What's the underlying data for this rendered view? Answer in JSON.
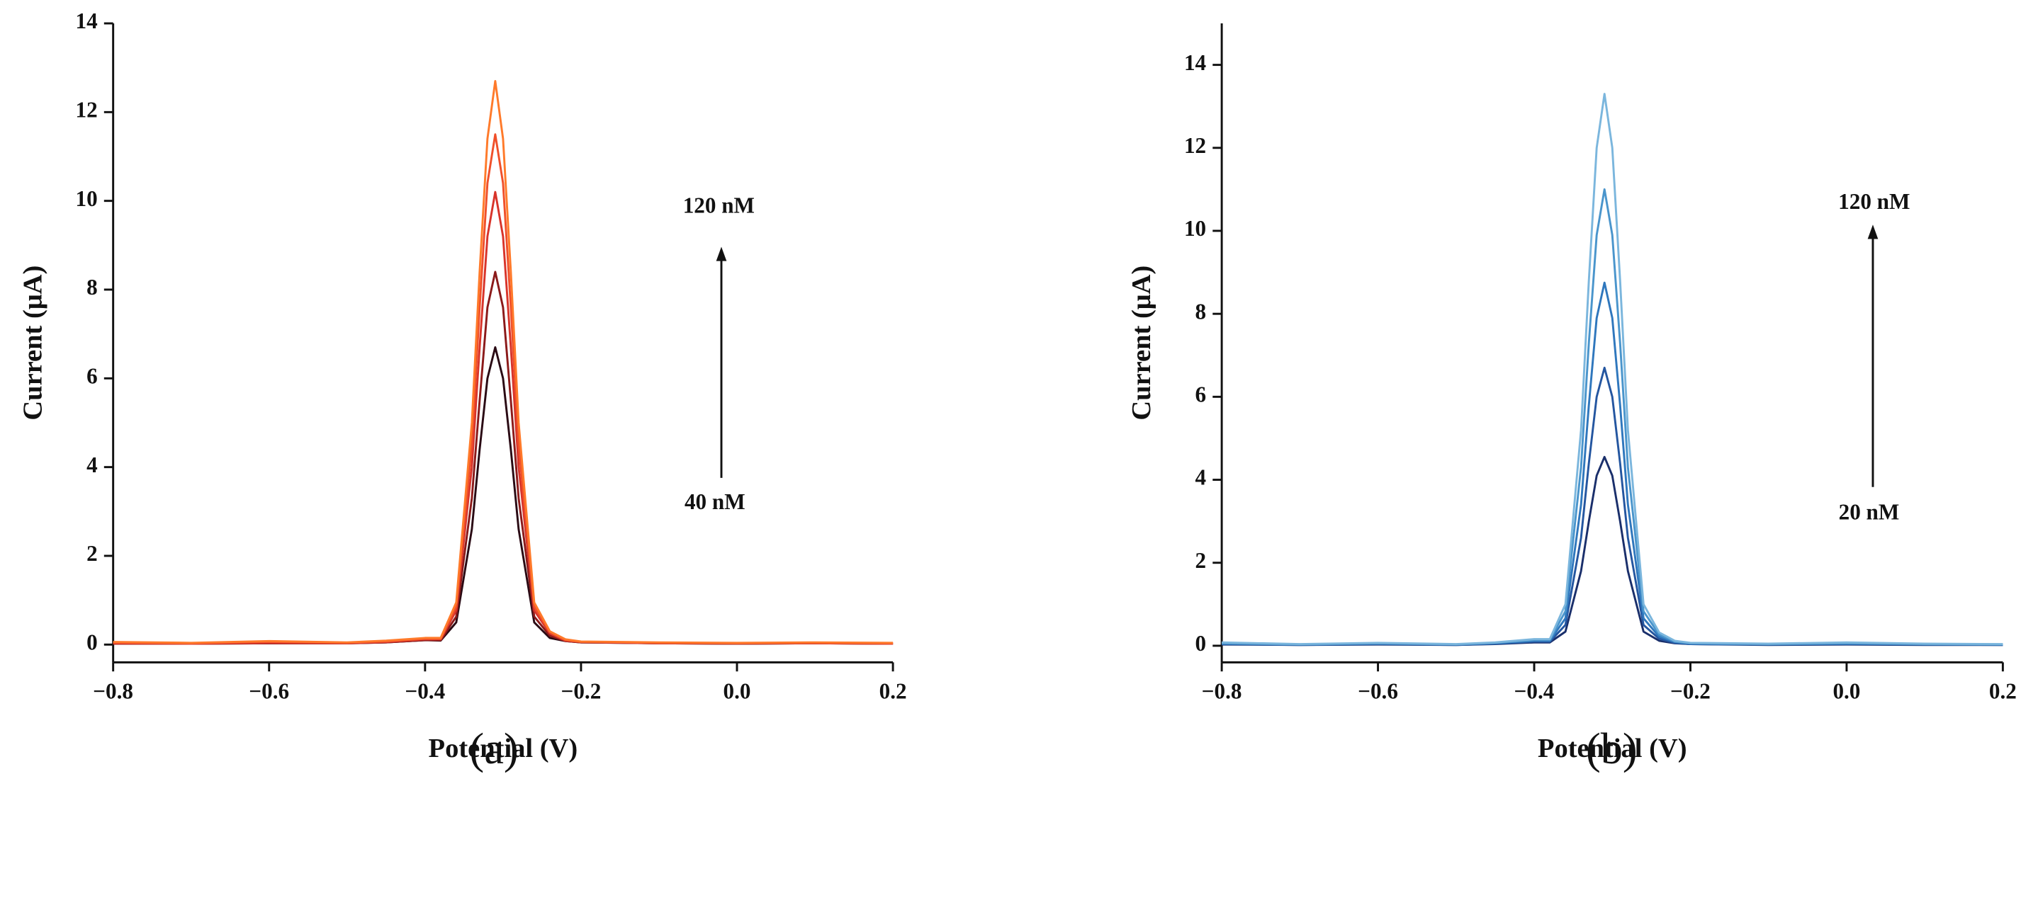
{
  "chart_data": [
    {
      "type": "line",
      "panel_label": "(a)",
      "x_label": "Potential (V)",
      "y_label": "Current (μA)",
      "annotations": [
        "120 nM",
        "40 nM"
      ],
      "x": [
        -0.8,
        -0.7,
        -0.6,
        -0.5,
        -0.45,
        -0.4,
        -0.38,
        -0.36,
        -0.34,
        -0.33,
        -0.32,
        -0.31,
        -0.3,
        -0.29,
        -0.28,
        -0.26,
        -0.24,
        -0.22,
        -0.2,
        -0.1,
        0,
        0.1,
        0.2
      ],
      "series": [
        {
          "color": "#2a0a14",
          "values": [
            0.02,
            0.02,
            0.03,
            0.03,
            0.05,
            0.1,
            0.09,
            0.5,
            2.6,
            4.4,
            6.0,
            6.7,
            6.0,
            4.4,
            2.6,
            0.5,
            0.15,
            0.08,
            0.05,
            0.03,
            0.02,
            0.03,
            0.02
          ]
        },
        {
          "color": "#8b1a1a",
          "values": [
            0.02,
            0.02,
            0.03,
            0.03,
            0.05,
            0.1,
            0.1,
            0.63,
            3.3,
            5.5,
            7.6,
            8.4,
            7.6,
            5.5,
            3.3,
            0.63,
            0.2,
            0.08,
            0.05,
            0.03,
            0.02,
            0.03,
            0.02
          ]
        },
        {
          "color": "#d8342a",
          "values": [
            0.03,
            0.02,
            0.04,
            0.03,
            0.06,
            0.12,
            0.12,
            0.77,
            4.0,
            6.7,
            9.2,
            10.2,
            9.2,
            6.7,
            4.0,
            0.77,
            0.25,
            0.09,
            0.06,
            0.03,
            0.03,
            0.03,
            0.02
          ]
        },
        {
          "color": "#f0502a",
          "values": [
            0.04,
            0.03,
            0.06,
            0.04,
            0.07,
            0.13,
            0.13,
            0.86,
            4.5,
            7.6,
            10.4,
            11.5,
            10.4,
            7.6,
            4.5,
            0.86,
            0.28,
            0.1,
            0.06,
            0.04,
            0.03,
            0.04,
            0.03
          ]
        },
        {
          "color": "#ff7a2a",
          "values": [
            0.06,
            0.04,
            0.08,
            0.05,
            0.09,
            0.15,
            0.15,
            0.95,
            5.0,
            8.4,
            11.4,
            12.7,
            11.4,
            8.4,
            5.0,
            0.95,
            0.3,
            0.12,
            0.07,
            0.05,
            0.04,
            0.05,
            0.04
          ]
        }
      ],
      "xlim": [
        -0.8,
        0.2
      ],
      "ylim": [
        -0.4,
        14
      ],
      "xticks": [
        {
          "value": -0.8,
          "label": "−0.8"
        },
        {
          "value": -0.6,
          "label": "−0.6"
        },
        {
          "value": -0.4,
          "label": "−0.4"
        },
        {
          "value": -0.2,
          "label": "−0.2"
        },
        {
          "value": 0,
          "label": "0.0"
        },
        0.2
      ],
      "yticks": [
        0,
        2,
        4,
        6,
        8,
        10,
        12,
        14
      ]
    },
    {
      "type": "line",
      "panel_label": "(b)",
      "x_label": "Potential (V)",
      "y_label": "Current (μA)",
      "annotations": [
        "120 nM",
        "20 nM"
      ],
      "x": [
        -0.8,
        -0.7,
        -0.6,
        -0.5,
        -0.45,
        -0.4,
        -0.38,
        -0.36,
        -0.34,
        -0.33,
        -0.32,
        -0.31,
        -0.3,
        -0.29,
        -0.28,
        -0.26,
        -0.24,
        -0.22,
        -0.2,
        -0.1,
        0,
        0.1,
        0.2
      ],
      "series": [
        {
          "color": "#1a2f6b",
          "values": [
            0.03,
            0.02,
            0.03,
            0.02,
            0.04,
            0.08,
            0.08,
            0.34,
            1.8,
            3.0,
            4.1,
            4.55,
            4.1,
            3.0,
            1.8,
            0.34,
            0.12,
            0.06,
            0.04,
            0.02,
            0.03,
            0.02,
            0.02
          ]
        },
        {
          "color": "#2456a0",
          "values": [
            0.04,
            0.02,
            0.04,
            0.02,
            0.05,
            0.1,
            0.1,
            0.5,
            2.6,
            4.4,
            6.0,
            6.7,
            6.0,
            4.4,
            2.6,
            0.5,
            0.17,
            0.07,
            0.04,
            0.03,
            0.04,
            0.03,
            0.02
          ]
        },
        {
          "color": "#2f77bd",
          "values": [
            0.05,
            0.03,
            0.05,
            0.03,
            0.06,
            0.12,
            0.12,
            0.66,
            3.4,
            5.8,
            7.9,
            8.75,
            7.9,
            5.8,
            3.4,
            0.66,
            0.22,
            0.09,
            0.05,
            0.03,
            0.05,
            0.03,
            0.03
          ]
        },
        {
          "color": "#4a95cc",
          "values": [
            0.06,
            0.03,
            0.06,
            0.03,
            0.07,
            0.14,
            0.14,
            0.83,
            4.3,
            7.3,
            9.9,
            11.0,
            9.9,
            7.3,
            4.3,
            0.83,
            0.27,
            0.1,
            0.06,
            0.04,
            0.06,
            0.04,
            0.03
          ]
        },
        {
          "color": "#7bb6dd",
          "values": [
            0.08,
            0.04,
            0.07,
            0.04,
            0.08,
            0.16,
            0.16,
            1.0,
            5.2,
            8.8,
            12.0,
            13.3,
            12.0,
            8.8,
            5.2,
            1.0,
            0.32,
            0.12,
            0.07,
            0.05,
            0.08,
            0.05,
            0.04
          ]
        }
      ],
      "xlim": [
        -0.8,
        0.2
      ],
      "ylim": [
        -0.4,
        15
      ],
      "xticks": [
        {
          "value": -0.8,
          "label": "−0.8"
        },
        {
          "value": -0.6,
          "label": "−0.6"
        },
        {
          "value": -0.4,
          "label": "−0.4"
        },
        {
          "value": -0.2,
          "label": "−0.2"
        },
        {
          "value": 0,
          "label": "0.0"
        },
        0.2
      ],
      "yticks": [
        0,
        2,
        4,
        6,
        8,
        10,
        12,
        14
      ]
    }
  ]
}
